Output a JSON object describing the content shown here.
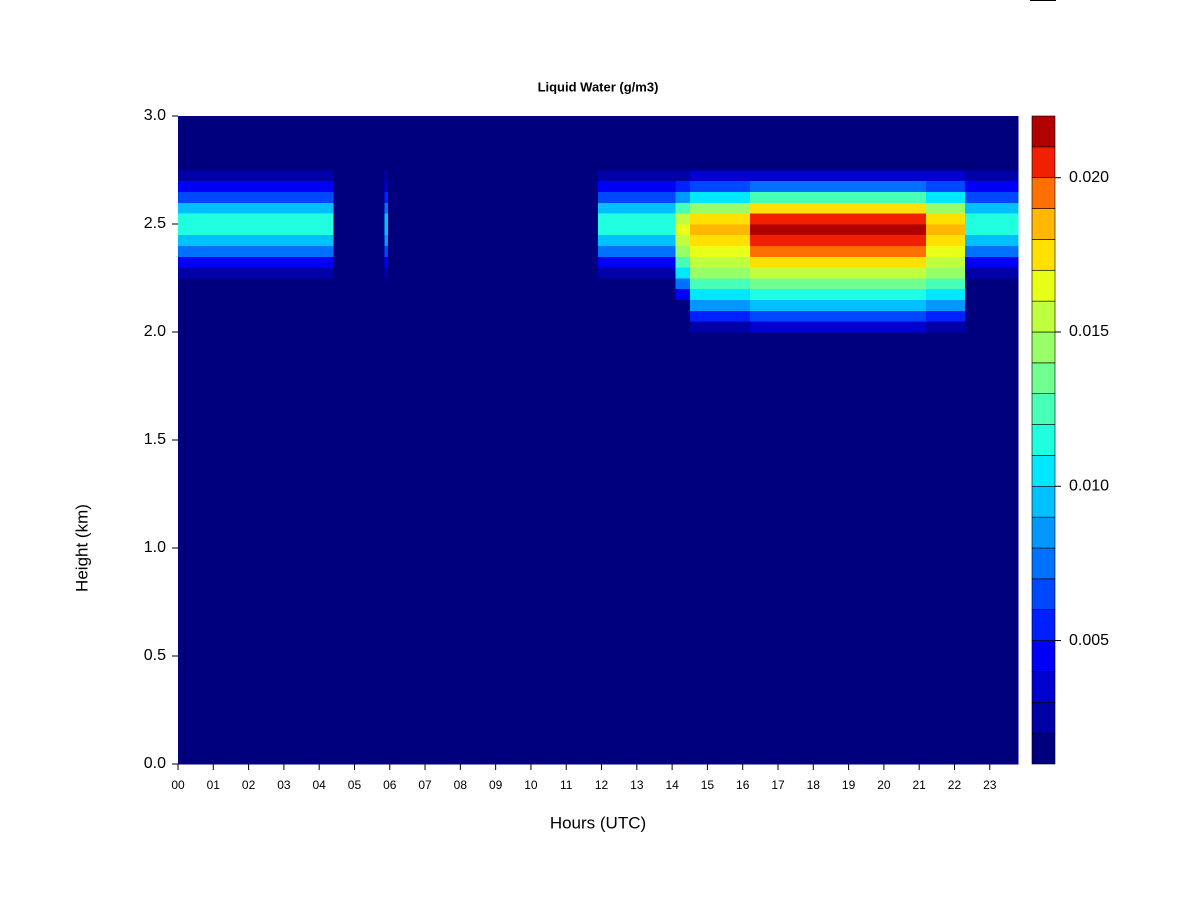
{
  "chart_data": {
    "type": "heatmap",
    "title": "Liquid Water (g/m3)",
    "x_label": "Hours (UTC)",
    "y_label": "Height (km)",
    "xlim": [
      0,
      23.8
    ],
    "ylim": [
      0,
      3
    ],
    "xticks": [
      {
        "value": 0,
        "label": "00"
      },
      {
        "value": 1,
        "label": "01"
      },
      {
        "value": 2,
        "label": "02"
      },
      {
        "value": 3,
        "label": "03"
      },
      {
        "value": 4,
        "label": "04"
      },
      {
        "value": 5,
        "label": "05"
      },
      {
        "value": 6,
        "label": "06"
      },
      {
        "value": 7,
        "label": "07"
      },
      {
        "value": 8,
        "label": "08"
      },
      {
        "value": 9,
        "label": "09"
      },
      10,
      11,
      12,
      13,
      14,
      15,
      16,
      17,
      18,
      19,
      20,
      21,
      22,
      23
    ],
    "yticks": [
      {
        "value": 0,
        "label": "0.0"
      },
      0.5,
      {
        "value": 1,
        "label": "1.0"
      },
      1.5,
      {
        "value": 2,
        "label": "2.0"
      },
      2.5,
      {
        "value": 3,
        "label": "3.0"
      }
    ],
    "x_edges": [
      0,
      4.4,
      5.85,
      5.95,
      11.9,
      14.1,
      14.5,
      16.2,
      21.2,
      22.3,
      23.8
    ],
    "y_edges": [
      0,
      2.0,
      2.05,
      2.1,
      2.15,
      2.2,
      2.25,
      2.3,
      2.35,
      2.4,
      2.45,
      2.5,
      2.55,
      2.6,
      2.65,
      2.7,
      2.75,
      3.0
    ],
    "z": [
      [
        0,
        0,
        0,
        0,
        0,
        0,
        0,
        0,
        0,
        0
      ],
      [
        0,
        0,
        0,
        0,
        0,
        0,
        0.002,
        0.003,
        0.002,
        0
      ],
      [
        0,
        0,
        0,
        0,
        0,
        0,
        0.005,
        0.006,
        0.005,
        0
      ],
      [
        0,
        0,
        0,
        0,
        0,
        0,
        0.008,
        0.009,
        0.008,
        0
      ],
      [
        0,
        0,
        0,
        0,
        0,
        0.004,
        0.01,
        0.011,
        0.01,
        0
      ],
      [
        0,
        0,
        0,
        0,
        0,
        0.007,
        0.012,
        0.013,
        0.012,
        0
      ],
      [
        0.002,
        0,
        0.002,
        0,
        0.002,
        0.01,
        0.014,
        0.015,
        0.014,
        0.002
      ],
      [
        0.004,
        0,
        0.004,
        0,
        0.004,
        0.012,
        0.015,
        0.017,
        0.015,
        0.004
      ],
      [
        0.007,
        0,
        0.006,
        0,
        0.007,
        0.014,
        0.016,
        0.019,
        0.016,
        0.007
      ],
      [
        0.009,
        0,
        0.008,
        0,
        0.009,
        0.015,
        0.017,
        0.02,
        0.017,
        0.009
      ],
      [
        0.011,
        0,
        0.009,
        0,
        0.011,
        0.016,
        0.018,
        0.021,
        0.018,
        0.011
      ],
      [
        0.011,
        0,
        0.009,
        0,
        0.011,
        0.015,
        0.017,
        0.02,
        0.017,
        0.011
      ],
      [
        0.009,
        0,
        0.007,
        0,
        0.009,
        0.012,
        0.014,
        0.017,
        0.014,
        0.009
      ],
      [
        0.006,
        0,
        0.005,
        0,
        0.006,
        0.008,
        0.01,
        0.012,
        0.01,
        0.006
      ],
      [
        0.004,
        0,
        0.003,
        0,
        0.004,
        0.005,
        0.006,
        0.007,
        0.006,
        0.004
      ],
      [
        0.002,
        0,
        0.002,
        0,
        0.002,
        0.002,
        0.003,
        0.003,
        0.003,
        0.002
      ],
      [
        0,
        0,
        0,
        0,
        0,
        0,
        0,
        0,
        0,
        0
      ]
    ],
    "colorbar": {
      "levels": [
        0.001,
        0.002,
        0.003,
        0.004,
        0.005,
        0.006,
        0.007,
        0.008,
        0.009,
        0.01,
        0.011,
        0.012,
        0.013,
        0.014,
        0.015,
        0.016,
        0.017,
        0.018,
        0.019,
        0.02,
        0.021,
        0.022
      ],
      "colors": [
        "#00007F",
        "#0000A8",
        "#0000D0",
        "#0000F8",
        "#0020FF",
        "#0048FF",
        "#0070FF",
        "#0098FF",
        "#00C0FF",
        "#00E8FF",
        "#20FFDF",
        "#48FFB8",
        "#70FF90",
        "#98FF68",
        "#C0FF40",
        "#E8FF18",
        "#FFE000",
        "#FFB800",
        "#FF7000",
        "#F02000",
        "#B00000"
      ],
      "ticks": [
        0.005,
        {
          "value": 0.01,
          "label": "0.010"
        },
        0.015,
        {
          "value": 0.02,
          "label": "0.020"
        }
      ]
    }
  }
}
